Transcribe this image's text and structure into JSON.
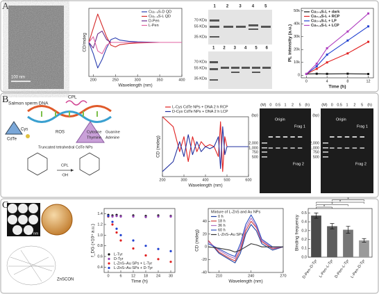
{
  "panels": {
    "A": {
      "label": "A",
      "scale_bar": "100 nm",
      "gel_1": {
        "lanes": [
          "1",
          "2",
          "3",
          "4",
          "5"
        ],
        "markers": [
          "70 KDa",
          "55 KDa",
          "35 KDa"
        ]
      },
      "gel_2": {
        "lanes": [
          "1",
          "2",
          "3",
          "4",
          "5",
          "6"
        ],
        "markers": [
          "70 KDa",
          "55 KDa",
          "35 KDa"
        ]
      }
    },
    "B": {
      "label": "B",
      "schematic": {
        "dna": "Salmon sperm DNA",
        "cpl": "CPL",
        "ros": "ROS",
        "cys": "Cys",
        "cdte": "CdTe",
        "bases": [
          "Cytosine",
          "Guanine",
          "Thymine",
          "Adenine"
        ],
        "nps": "Truncated tetrahedral CdTe NPs",
        "cpl_2": "CPL",
        "oh": "·OH"
      },
      "gels": [
        {
          "lanes": [
            "(M)",
            "0",
            "0.5",
            "1",
            "2",
            "5",
            "(h)"
          ],
          "bp": "(bp)",
          "ladder": [
            "2,000",
            "1,000",
            "750",
            "500"
          ],
          "origin": "Origin",
          "frag_1": "Frag 1",
          "frag_2": "Frag 2"
        },
        {
          "lanes": [
            "(M)",
            "0",
            "0.5",
            "1",
            "2",
            "5",
            "(h)"
          ],
          "bp": "(bp)",
          "ladder": [
            "2,000",
            "1,000",
            "750",
            "500"
          ],
          "origin": "Origin",
          "frag_1": "Frag 1",
          "frag_2": "Frag 2"
        }
      ]
    },
    "C": {
      "label": "C",
      "material": "ZnSCON",
      "scale_bar": "50 nm"
    }
  },
  "chart_data": [
    {
      "type": "line",
      "x_label": "Wavelength (nm)",
      "y_label": "CD/mdeg",
      "legend": "upper right",
      "x": [
        190,
        200,
        210,
        220,
        230,
        240,
        250,
        260,
        280,
        300,
        350,
        400
      ],
      "xlim": [
        190,
        400
      ],
      "xticks": [
        200,
        250,
        300,
        350,
        400
      ],
      "ylim": [
        -60,
        60
      ],
      "series": [
        {
          "name": "Cu₂₋ₓS-D QD",
          "color": "#2b3fb0",
          "values": [
            0,
            -20,
            -45,
            -30,
            -10,
            5,
            8,
            4,
            2,
            1,
            0,
            0
          ]
        },
        {
          "name": "Cu₂₋ₓS-L QD",
          "color": "#d42a2a",
          "values": [
            0,
            25,
            50,
            30,
            10,
            -5,
            -8,
            -4,
            -2,
            -1,
            0,
            0
          ]
        },
        {
          "name": "D-Pen",
          "color": "#6a2a8a",
          "values": [
            0,
            -10,
            15,
            20,
            5,
            0,
            0,
            0,
            0,
            0,
            0,
            0
          ]
        },
        {
          "name": "L-Pen",
          "color": "#e060a0",
          "values": [
            0,
            10,
            -15,
            -20,
            -5,
            0,
            0,
            0,
            0,
            0,
            0,
            0
          ]
        }
      ]
    },
    {
      "type": "line",
      "markers": true,
      "x_label": "Time (h)",
      "y_label": "PL intensity (a.u.)",
      "legend": "upper left",
      "x": [
        0,
        2,
        4,
        8,
        12
      ],
      "xlim": [
        -1,
        13
      ],
      "xticks": [
        0,
        4,
        8,
        12
      ],
      "ylim": [
        -2000,
        52000
      ],
      "yticks": [
        0,
        {
          "value": 10000,
          "label": "10k"
        },
        {
          "value": 20000,
          "label": "20k"
        },
        {
          "value": 30000,
          "label": "30k"
        },
        {
          "value": 40000,
          "label": "40k"
        },
        {
          "value": 50000,
          "label": "50k"
        }
      ],
      "series": [
        {
          "name": "Cu₂₋ₓS-L + dark",
          "color": "#111111",
          "values": [
            1000,
            1200,
            1100,
            1200,
            1000
          ]
        },
        {
          "name": "Cu₂₋ₓS-L + RCP",
          "color": "#e02020",
          "values": [
            1000,
            5000,
            10000,
            17000,
            26000
          ]
        },
        {
          "name": "Cu₂₋ₓS-L + LP",
          "color": "#2040d0",
          "values": [
            1000,
            7000,
            16000,
            27000,
            38000
          ]
        },
        {
          "name": "Cu₂₋ₓS-L + LCP",
          "color": "#b040c0",
          "values": [
            1000,
            9000,
            21000,
            34000,
            48000
          ]
        }
      ]
    },
    {
      "type": "line",
      "x_label": "Wavelength (nm)",
      "y_label": "CD (mdeg)",
      "legend": "top",
      "x": [
        200,
        250,
        280,
        300,
        320,
        340,
        360,
        380,
        400,
        420,
        440,
        460,
        470,
        480,
        490,
        500,
        550,
        600
      ],
      "xlim": [
        200,
        600
      ],
      "xticks": [
        200,
        300,
        400,
        500,
        600
      ],
      "ylim": [
        -30,
        30
      ],
      "series": [
        {
          "name": "L-Cys CdTe NPs + DNA 2 h RCP",
          "color": "#e02020",
          "values": [
            30,
            20,
            -5,
            10,
            -15,
            10,
            -5,
            5,
            0,
            2,
            0,
            -10,
            25,
            -25,
            10,
            0,
            0,
            0
          ]
        },
        {
          "name": "D-Cys CdTe NPs + DNA 2 h LCP",
          "color": "#1f2f9f",
          "values": [
            -25,
            -15,
            5,
            -10,
            12,
            -8,
            5,
            -5,
            0,
            -2,
            0,
            10,
            -22,
            20,
            -8,
            0,
            0,
            0
          ]
        }
      ]
    },
    {
      "type": "scatter",
      "x_label": "Time (h)",
      "y_label": "f_DG (×10⁴ a.u.)",
      "legend": "lower left",
      "x": [
        0,
        2,
        4,
        6,
        12,
        18,
        24,
        30
      ],
      "xlim": [
        -2,
        32
      ],
      "xticks": [
        0,
        6,
        12,
        18,
        24,
        30
      ],
      "ylim": [
        0.3,
        1.5
      ],
      "yticks": [
        0.4,
        0.6,
        0.8,
        {
          "value": 1,
          "label": "1.0"
        },
        1.2,
        1.4
      ],
      "series": [
        {
          "name": "L-Tyr",
          "color": "#111111",
          "values": [
            1.38,
            1.37,
            1.38,
            1.36,
            1.37,
            1.36,
            1.37,
            1.36
          ]
        },
        {
          "name": "D-Tyr",
          "color": "#9040b0",
          "values": [
            1.36,
            1.35,
            1.36,
            1.35,
            1.35,
            1.34,
            1.35,
            1.35
          ]
        },
        {
          "name": "L-ZnS–Au SPs + L-Tyr",
          "color": "#e02020",
          "values": [
            1.35,
            1.2,
            1.05,
            0.9,
            0.75,
            0.62,
            0.55,
            0.5
          ]
        },
        {
          "name": "L-ZnS–Au SPs + D-Tyr",
          "color": "#2040d0",
          "values": [
            1.36,
            1.25,
            1.12,
            1,
            0.9,
            0.8,
            0.74,
            0.7
          ]
        }
      ]
    },
    {
      "type": "line",
      "x_label": "Wavelength (nm)",
      "y_label": "CD (mdeg)",
      "legend": "upper left",
      "legend_title": "Mixture of L-ZnS and Au NPs",
      "x": [
        200,
        210,
        220,
        225,
        230,
        235,
        240,
        245,
        250,
        260,
        270
      ],
      "xlim": [
        200,
        270
      ],
      "xticks": [
        210,
        240,
        270
      ],
      "ylim": [
        -40,
        60
      ],
      "yticks": [
        -40,
        -20,
        0,
        20,
        40
      ],
      "series": [
        {
          "name": "0 h",
          "color": "#1f3f9f",
          "values": [
            10,
            -10,
            -20,
            -25,
            -10,
            20,
            35,
            25,
            5,
            -5,
            0
          ]
        },
        {
          "name": "18 h",
          "color": "#d04040",
          "values": [
            10,
            -8,
            -18,
            -22,
            -5,
            25,
            40,
            30,
            8,
            -3,
            0
          ]
        },
        {
          "name": "36 h",
          "color": "#b070c0",
          "values": [
            8,
            -5,
            -15,
            -18,
            0,
            30,
            45,
            32,
            10,
            -2,
            0
          ]
        },
        {
          "name": "60 h",
          "color": "#3050c0",
          "values": [
            5,
            -3,
            -12,
            -15,
            5,
            35,
            50,
            35,
            12,
            0,
            0
          ]
        },
        {
          "name": "L-ZnS–Au SPs",
          "color": "#333333",
          "values": [
            0,
            -2,
            -5,
            -8,
            -5,
            0,
            5,
            3,
            0,
            0,
            0
          ]
        }
      ]
    },
    {
      "type": "bar",
      "y_label": "Binding frequency",
      "categories": [
        "D-Pen–D-Tyr",
        "L-Pen–L-Tyr",
        "D-Pen–L-Tyr",
        "L-Pen–D-Tyr"
      ],
      "values": [
        0.47,
        0.35,
        0.31,
        0.19
      ],
      "errors": [
        0.03,
        0.03,
        0.04,
        0.02
      ],
      "colors": [
        "#4a4a4a",
        "#5e5e5e",
        "#767676",
        "#9a9a9a"
      ],
      "ylim": [
        0,
        0.55
      ],
      "yticks": [
        {
          "value": 0,
          "label": "0.0"
        },
        0.1,
        0.2,
        0.3,
        0.4,
        0.5
      ],
      "annotations": [
        "*",
        "*",
        "*",
        "*"
      ]
    }
  ]
}
